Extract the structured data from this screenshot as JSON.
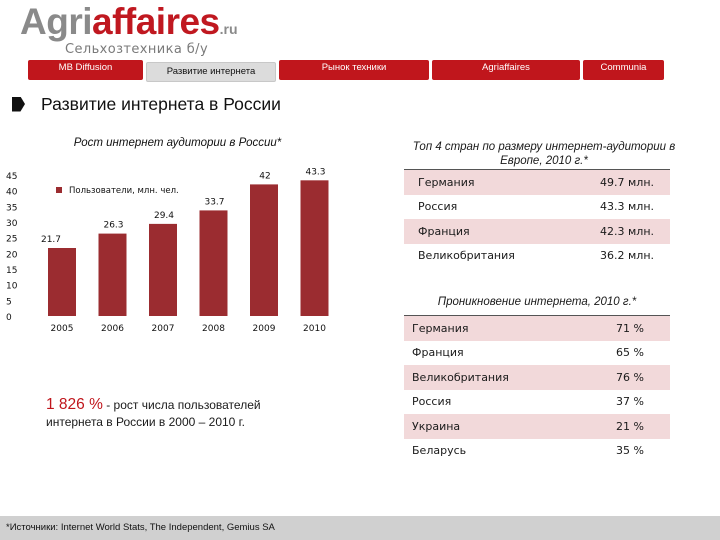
{
  "logo": {
    "agri": "Agri",
    "affaires": "affaires",
    "ru": ".ru",
    "subtitle": "Сельхозтехника б/у"
  },
  "nav": {
    "tabs": [
      {
        "label": "MB Diffusion",
        "active": false
      },
      {
        "label": "Развитие интернета",
        "active": true
      },
      {
        "label": "Рынок техники",
        "active": false
      },
      {
        "label": "Agriaffaires",
        "active": false
      },
      {
        "label": "Communia",
        "active": false
      }
    ]
  },
  "page": {
    "title": "Развитие интернета в России"
  },
  "chart_data": {
    "type": "bar",
    "title": "Рост интернет аудитории в России*",
    "legend": "Пользователи, млн. чел.",
    "legend_position": "top-left",
    "categories": [
      "2005",
      "2006",
      "2007",
      "2008",
      "2009",
      "2010"
    ],
    "values": [
      21.7,
      26.3,
      29.4,
      33.7,
      42,
      43.3
    ],
    "value_labels": [
      "21.7",
      "26.3",
      "29.4",
      "33.7",
      "42",
      "43.3"
    ],
    "y_ticks": [
      "0",
      "5",
      "10",
      "15",
      "20",
      "25",
      "30",
      "35",
      "40",
      "45"
    ],
    "ylim": [
      0,
      45
    ],
    "grid": false,
    "bar_color": "#9b2c30"
  },
  "table_top4": {
    "title": "Топ 4 стран по размеру интернет-аудитории в Европе, 2010 г.*",
    "rows": [
      {
        "country": "Германия",
        "value": "49.7 млн."
      },
      {
        "country": "Россия",
        "value": "43.3 млн."
      },
      {
        "country": "Франция",
        "value": "42.3 млн."
      },
      {
        "country": "Великобритания",
        "value": "36.2 млн."
      }
    ]
  },
  "table_penetration": {
    "title": "Проникновение интернета, 2010 г.*",
    "rows": [
      {
        "country": "Германия",
        "value": "71 %"
      },
      {
        "country": "Франция",
        "value": "65 %"
      },
      {
        "country": "Великобритания",
        "value": "76 %"
      },
      {
        "country": "Россия",
        "value": "37 %"
      },
      {
        "country": "Украина",
        "value": "21 %"
      },
      {
        "country": "Беларусь",
        "value": "35 %"
      }
    ]
  },
  "growth": {
    "number": "1 826 %",
    "text1": " -  рост числа пользователей",
    "text2": "интернета в России в 2000 – 2010 г."
  },
  "footer": {
    "sources": "*Источники: Internet World Stats, The Independent, Gemius SA"
  },
  "colors": {
    "brand_red": "#c0161c",
    "bar": "#9b2c30",
    "row_shade": "#f2d9da",
    "footer_bg": "#d0d0d0"
  }
}
